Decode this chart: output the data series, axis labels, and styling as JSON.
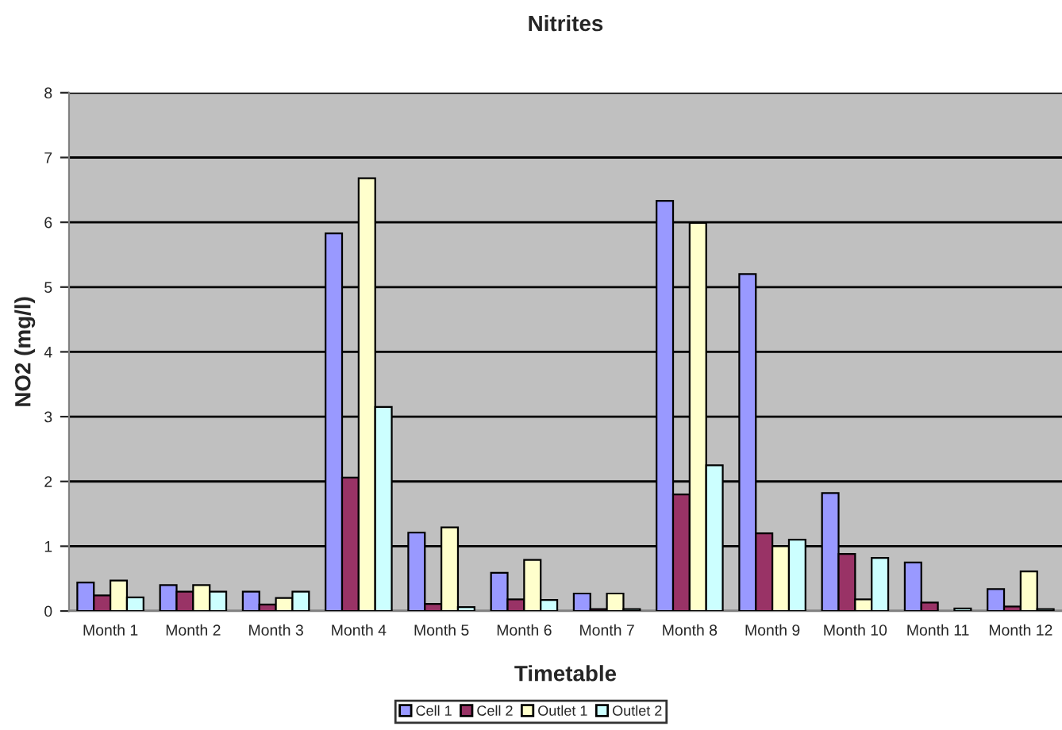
{
  "chart_data": {
    "type": "bar",
    "title": "Nitrites",
    "xlabel": "Timetable",
    "ylabel": "NO2 (mg/l)",
    "categories": [
      "Month 1",
      "Month 2",
      "Month 3",
      "Month 4",
      "Month 5",
      "Month 6",
      "Month 7",
      "Month 8",
      "Month 9",
      "Month 10",
      "Month 11",
      "Month 12"
    ],
    "series": [
      {
        "name": "Cell 1",
        "color": "#9999ff",
        "values": [
          0.44,
          0.4,
          0.3,
          5.83,
          1.21,
          0.59,
          0.27,
          6.33,
          5.2,
          1.82,
          0.75,
          0.34
        ]
      },
      {
        "name": "Cell 2",
        "color": "#993366",
        "values": [
          0.24,
          0.3,
          0.1,
          2.06,
          0.11,
          0.18,
          0.03,
          1.8,
          1.2,
          0.88,
          0.13,
          0.07
        ]
      },
      {
        "name": "Outlet 1",
        "color": "#ffffcc",
        "values": [
          0.47,
          0.4,
          0.2,
          6.68,
          1.29,
          0.79,
          0.27,
          5.99,
          1.0,
          0.18,
          null,
          0.61
        ]
      },
      {
        "name": "Outlet 2",
        "color": "#ccffff",
        "values": [
          0.21,
          0.3,
          0.3,
          3.15,
          0.06,
          0.17,
          0.03,
          2.25,
          1.1,
          0.82,
          0.04,
          0.03
        ]
      }
    ],
    "ylim": [
      0,
      8
    ],
    "yticks": [
      0,
      1,
      2,
      3,
      4,
      5,
      6,
      7,
      8
    ],
    "grid": "y",
    "legend": "bottom"
  }
}
